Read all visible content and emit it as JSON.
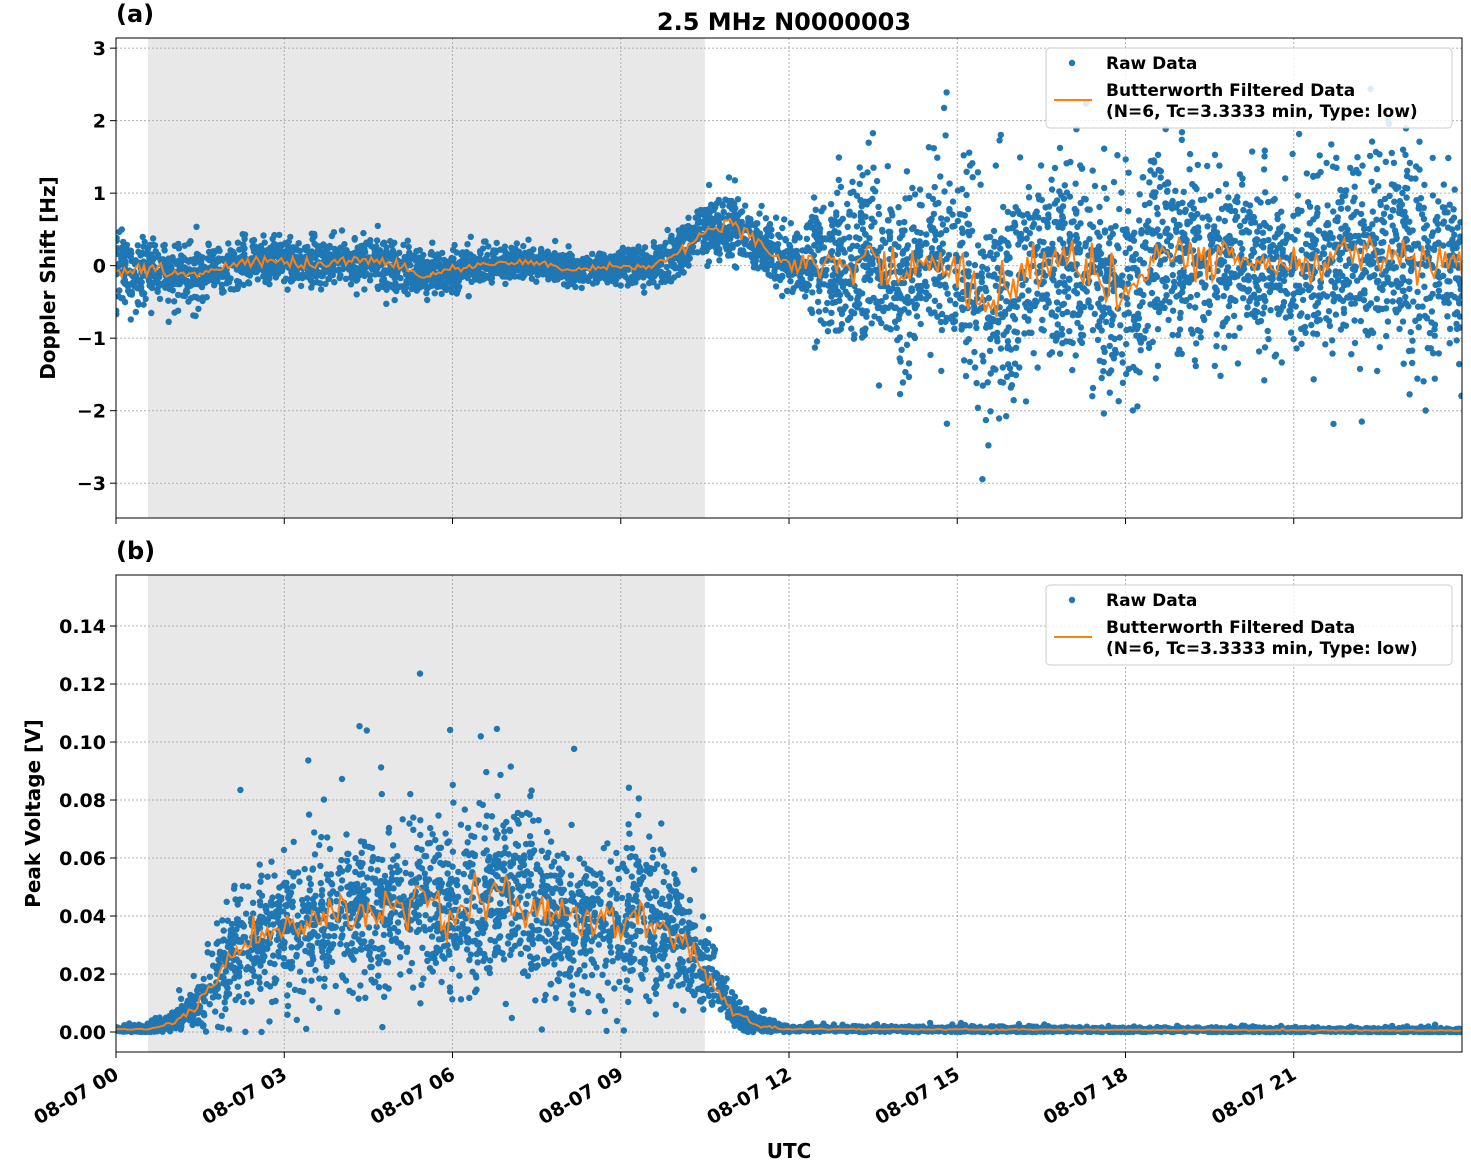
{
  "figure_title": "2.5 MHz N0000003",
  "x_label": "UTC",
  "colors": {
    "raw": "#1f77b4",
    "filtered": "#ff7f0e",
    "shade": "#e8e8e8"
  },
  "chart_data": [
    {
      "type": "scatter",
      "panel_label": "(a)",
      "ylabel": "Doppler Shift [Hz]",
      "xlim_hours": [
        0,
        24
      ],
      "x_ticks": [
        "08-07 00",
        "08-07 03",
        "08-07 06",
        "08-07 09",
        "08-07 12",
        "08-07 15",
        "08-07 18",
        "08-07 21"
      ],
      "x_tick_hours": [
        0,
        3,
        6,
        9,
        12,
        15,
        18,
        21
      ],
      "ylim": [
        -3.48,
        3.14
      ],
      "y_ticks": [
        -3,
        -2,
        -1,
        0,
        1,
        2,
        3
      ],
      "y_tick_labels": [
        "−3",
        "−2",
        "−1",
        "0",
        "1",
        "2",
        "3"
      ],
      "grid": true,
      "shaded_region_hours": [
        0.57,
        10.5
      ],
      "legend": {
        "placement": "top-right",
        "entries": [
          "Raw Data",
          "Butterworth Filtered Data",
          "(N=6, Tc=3.3333 min, Type: low)"
        ]
      },
      "filtered": {
        "hours": [
          0,
          0.5,
          1,
          1.5,
          2,
          2.5,
          3,
          3.5,
          4,
          4.5,
          5,
          5.5,
          6,
          6.5,
          7,
          7.5,
          8,
          8.5,
          9,
          9.5,
          10,
          10.5,
          11,
          11.5,
          12,
          12.5,
          13,
          13.5,
          14,
          14.5,
          15,
          15.5,
          16,
          16.5,
          17,
          17.5,
          18,
          18.5,
          19,
          19.5,
          20,
          20.5,
          21,
          21.5,
          22,
          22.5,
          23,
          23.5,
          24
        ],
        "values": [
          -0.1,
          -0.05,
          -0.1,
          -0.1,
          0.0,
          0.05,
          0.05,
          0.0,
          0.05,
          0.1,
          0.0,
          -0.15,
          -0.05,
          0.0,
          0.05,
          0.05,
          -0.05,
          -0.05,
          0.0,
          0.0,
          0.15,
          0.5,
          0.55,
          0.25,
          0.0,
          0.0,
          0.05,
          0.1,
          -0.1,
          0.1,
          -0.05,
          -0.6,
          -0.3,
          0.0,
          0.0,
          -0.2,
          -0.4,
          0.1,
          0.1,
          0.05,
          0.1,
          0.0,
          0.1,
          0.0,
          0.3,
          0.1,
          0.1,
          0.0,
          0.0
        ]
      },
      "raw_spread": {
        "hours": [
          0,
          1,
          2,
          3,
          4,
          5,
          6,
          7,
          8,
          9,
          10,
          11,
          12,
          13,
          14,
          15,
          16,
          17,
          18,
          19,
          20,
          21,
          22,
          23,
          24
        ],
        "half_width": [
          0.5,
          0.4,
          0.3,
          0.3,
          0.3,
          0.35,
          0.25,
          0.2,
          0.2,
          0.2,
          0.3,
          0.5,
          0.4,
          1.1,
          1.2,
          1.4,
          1.5,
          1.2,
          1.4,
          1.2,
          1.1,
          1.1,
          1.2,
          1.2,
          1.1
        ]
      }
    },
    {
      "type": "scatter",
      "panel_label": "(b)",
      "ylabel": "Peak Voltage [V]",
      "xlim_hours": [
        0,
        24
      ],
      "x_ticks": [
        "08-07 00",
        "08-07 03",
        "08-07 06",
        "08-07 09",
        "08-07 12",
        "08-07 15",
        "08-07 18",
        "08-07 21"
      ],
      "x_tick_hours": [
        0,
        3,
        6,
        9,
        12,
        15,
        18,
        21
      ],
      "ylim": [
        -0.0069,
        0.1576
      ],
      "y_ticks": [
        0,
        0.02,
        0.04,
        0.06,
        0.08,
        0.1,
        0.12,
        0.14
      ],
      "y_tick_labels": [
        "0.00",
        "0.02",
        "0.04",
        "0.06",
        "0.08",
        "0.10",
        "0.12",
        "0.14"
      ],
      "grid": true,
      "shaded_region_hours": [
        0.57,
        10.5
      ],
      "legend": {
        "placement": "top-right",
        "entries": [
          "Raw Data",
          "Butterworth Filtered Data",
          "(N=6, Tc=3.3333 min, Type: low)"
        ]
      },
      "filtered": {
        "hours": [
          0,
          0.5,
          1,
          1.5,
          2,
          2.5,
          3,
          3.5,
          4,
          4.5,
          5,
          5.5,
          6,
          6.5,
          7,
          7.5,
          8,
          8.5,
          9,
          9.5,
          10,
          10.5,
          11,
          11.5,
          12,
          24
        ],
        "values": [
          0.001,
          0.001,
          0.003,
          0.01,
          0.025,
          0.032,
          0.035,
          0.038,
          0.04,
          0.042,
          0.042,
          0.045,
          0.043,
          0.045,
          0.048,
          0.042,
          0.04,
          0.038,
          0.038,
          0.04,
          0.035,
          0.02,
          0.007,
          0.002,
          0.001,
          0.0005
        ]
      },
      "raw_spread": {
        "hours": [
          0,
          1,
          1.5,
          2,
          3,
          4,
          5,
          6,
          7,
          8,
          9,
          10,
          10.5,
          11,
          12,
          24
        ],
        "half_width": [
          0.001,
          0.003,
          0.01,
          0.02,
          0.025,
          0.03,
          0.03,
          0.035,
          0.035,
          0.03,
          0.03,
          0.025,
          0.015,
          0.005,
          0.001,
          0.0008
        ]
      }
    }
  ]
}
